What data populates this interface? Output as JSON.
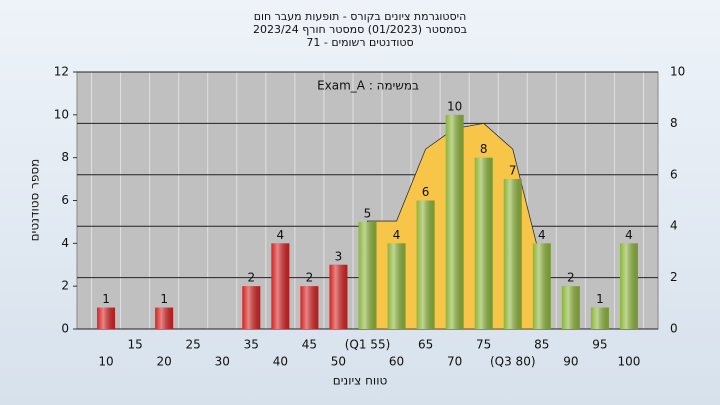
{
  "chart_data": {
    "type": "bar",
    "title_lines": [
      "היסטוגרמת ציונים בקורס - תופעות מעבר חום",
      "בסמסטר (01/2023) סמסטר חורף 2023/24",
      "סטודנטים רשומים - 71"
    ],
    "annotation": "במשימה : Exam_A",
    "ylabel": "מספר סטודנטים",
    "xlabel": "טווח ציונים",
    "categories": [
      "10",
      "15",
      "20",
      "25",
      "30",
      "35",
      "40",
      "45",
      "50",
      "(Q1 55)",
      "60",
      "65",
      "70",
      "75",
      "(Q3 80)",
      "85",
      "90",
      "95",
      "100"
    ],
    "values": [
      1,
      0,
      1,
      0,
      0,
      2,
      4,
      2,
      3,
      5,
      4,
      6,
      10,
      8,
      7,
      4,
      2,
      1,
      4
    ],
    "colors": [
      "#d42222",
      "#d42222",
      "#d42222",
      "#d42222",
      "#d42222",
      "#d42222",
      "#d42222",
      "#d42222",
      "#d42222",
      "#8cb43a",
      "#8cb43a",
      "#8cb43a",
      "#8cb43a",
      "#8cb43a",
      "#8cb43a",
      "#8cb43a",
      "#8cb43a",
      "#8cb43a",
      "#8cb43a"
    ],
    "overlay": {
      "type": "area",
      "axis": "y2",
      "color": "#f7c548",
      "values": [
        null,
        null,
        null,
        null,
        null,
        null,
        null,
        null,
        null,
        4.2,
        4.2,
        7.0,
        7.8,
        8.0,
        7.0,
        2.5,
        null,
        null,
        null
      ]
    },
    "ylim": [
      0,
      12
    ],
    "yticks": [
      0,
      2,
      4,
      6,
      8,
      10,
      12
    ],
    "y2lim": [
      0,
      10
    ],
    "y2ticks": [
      0,
      2,
      4,
      6,
      8,
      10
    ],
    "grid": true
  }
}
